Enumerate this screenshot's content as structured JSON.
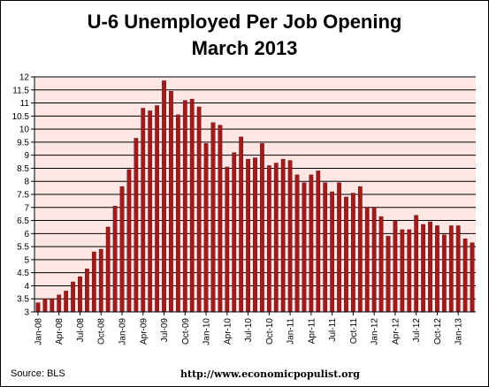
{
  "chart_data": {
    "type": "bar",
    "title": "U-6 Unemployed Per Job Opening",
    "subtitle": "March 2013",
    "source": "Source:  BLS",
    "url": "http://www.economicpopulist.org",
    "xlabel": "",
    "ylabel": "",
    "ylim": [
      3,
      12
    ],
    "yticks": [
      "3",
      "3.5",
      "4",
      "4.5",
      "5",
      "5.5",
      "6",
      "6.5",
      "7",
      "7.5",
      "8",
      "8.5",
      "9",
      "9.5",
      "10",
      "10.5",
      "11",
      "11.5",
      "12"
    ],
    "grid": true,
    "colors": {
      "bar": "#a11b1b",
      "bar_edge": "#5a0a0a",
      "plot_bg": "#fde6e4",
      "grid": "#000000"
    },
    "categories": [
      "Jan-08",
      "Feb-08",
      "Mar-08",
      "Apr-08",
      "May-08",
      "Jun-08",
      "Jul-08",
      "Aug-08",
      "Sep-08",
      "Oct-08",
      "Nov-08",
      "Dec-08",
      "Jan-09",
      "Feb-09",
      "Mar-09",
      "Apr-09",
      "May-09",
      "Jun-09",
      "Jul-09",
      "Aug-09",
      "Sep-09",
      "Oct-09",
      "Nov-09",
      "Dec-09",
      "Jan-10",
      "Feb-10",
      "Mar-10",
      "Apr-10",
      "May-10",
      "Jun-10",
      "Jul-10",
      "Aug-10",
      "Sep-10",
      "Oct-10",
      "Nov-10",
      "Dec-10",
      "Jan-11",
      "Feb-11",
      "Mar-11",
      "Apr-11",
      "May-11",
      "Jun-11",
      "Jul-11",
      "Aug-11",
      "Sep-11",
      "Oct-11",
      "Nov-11",
      "Dec-11",
      "Jan-12",
      "Feb-12",
      "Mar-12",
      "Apr-12",
      "May-12",
      "Jun-12",
      "Jul-12",
      "Aug-12",
      "Sep-12",
      "Oct-12",
      "Nov-12",
      "Dec-12",
      "Jan-13",
      "Feb-13",
      "Mar-13"
    ],
    "xtick_labels": [
      "Jan-08",
      "Apr-08",
      "Jul-08",
      "Oct-08",
      "Jan-09",
      "Apr-09",
      "Jul-09",
      "Oct-09",
      "Jan-10",
      "Apr-10",
      "Jul-10",
      "Oct-10",
      "Jan-11",
      "Apr-11",
      "Jul-11",
      "Oct-11",
      "Jan-12",
      "Apr-12",
      "Jul-12",
      "Oct-12",
      "Jan-13"
    ],
    "values": [
      3.35,
      3.5,
      3.5,
      3.65,
      3.8,
      4.15,
      4.35,
      4.65,
      5.3,
      5.4,
      6.25,
      7.05,
      7.8,
      8.45,
      9.65,
      10.8,
      10.7,
      10.9,
      11.85,
      11.45,
      10.55,
      11.1,
      11.15,
      10.85,
      9.45,
      10.25,
      10.15,
      8.55,
      9.1,
      9.7,
      8.85,
      8.9,
      9.45,
      8.6,
      8.7,
      8.85,
      8.8,
      8.25,
      7.95,
      8.25,
      8.4,
      7.95,
      7.6,
      7.95,
      7.4,
      7.55,
      7.8,
      7.0,
      7.0,
      6.65,
      5.9,
      6.5,
      6.15,
      6.15,
      6.7,
      6.35,
      6.45,
      6.3,
      5.95,
      6.3,
      6.3,
      5.8,
      5.65
    ]
  }
}
